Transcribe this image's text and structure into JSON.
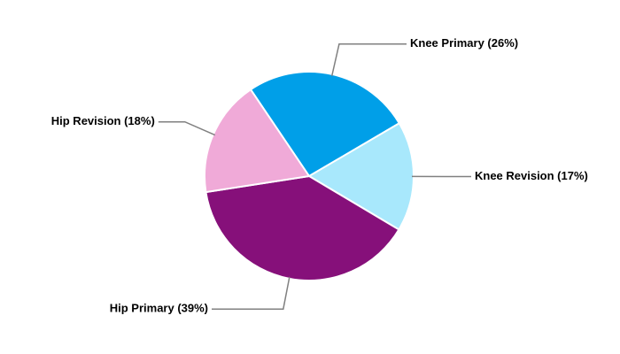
{
  "chart_data": {
    "type": "pie",
    "categories": [
      "Knee Primary (26%)",
      "Knee Revision (17%)",
      "Hip Primary (39%)",
      "Hip Revision (18%)"
    ],
    "values": [
      26,
      17,
      39,
      18
    ],
    "colors": [
      "#009fe8",
      "#a8e8fc",
      "#86107a",
      "#f0aad8"
    ]
  }
}
